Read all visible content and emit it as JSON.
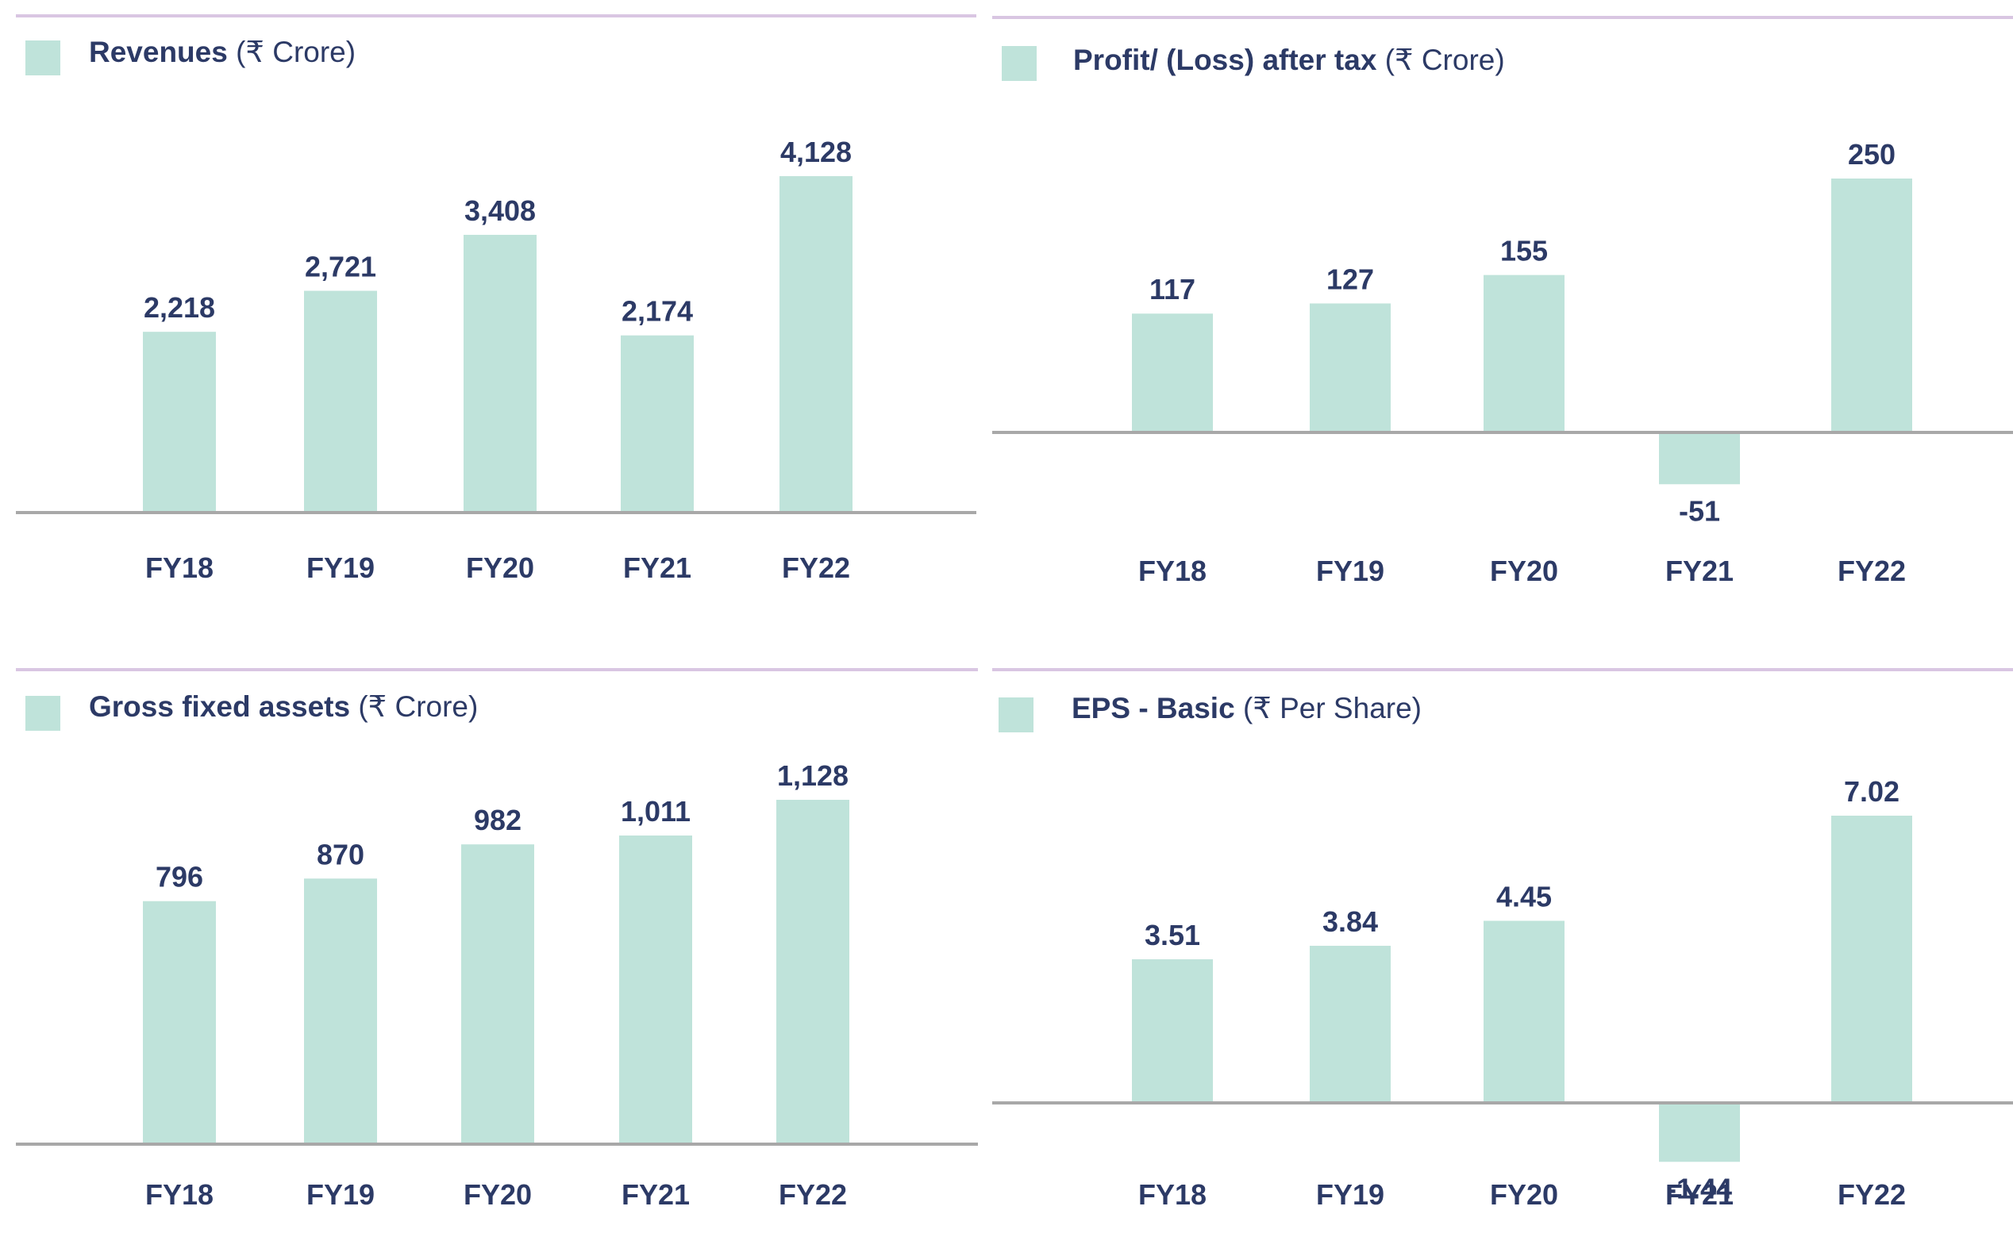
{
  "colors": {
    "bar": "#bfe3da",
    "axis": "#a8a8a8",
    "topline": "#d9c6e2",
    "text": "#2c3a66"
  },
  "charts": [
    {
      "key": "revenues",
      "title_bold": "Revenues",
      "title_unit": "(₹ Crore)"
    },
    {
      "key": "pat",
      "title_bold": "Profit/ (Loss) after tax",
      "title_unit": "(₹ Crore)"
    },
    {
      "key": "gfa",
      "title_bold": "Gross fixed assets",
      "title_unit": "(₹ Crore)"
    },
    {
      "key": "eps",
      "title_bold": "EPS - Basic",
      "title_unit": "(₹ Per Share)"
    }
  ],
  "chart_data": [
    {
      "type": "bar",
      "title": "Revenues (₹ Crore)",
      "categories": [
        "FY18",
        "FY19",
        "FY20",
        "FY21",
        "FY22"
      ],
      "values": [
        2218,
        2721,
        3408,
        2174,
        4128
      ],
      "value_labels": [
        "2,218",
        "2,721",
        "3,408",
        "2,174",
        "4,128"
      ],
      "xlabel": "",
      "ylabel": "",
      "ylim": [
        0,
        4128
      ],
      "grid": false
    },
    {
      "type": "bar",
      "title": "Profit/ (Loss) after tax (₹ Crore)",
      "categories": [
        "FY18",
        "FY19",
        "FY20",
        "FY21",
        "FY22"
      ],
      "values": [
        117,
        127,
        155,
        -51,
        250
      ],
      "value_labels": [
        "117",
        "127",
        "155",
        "-51",
        "250"
      ],
      "xlabel": "",
      "ylabel": "",
      "ylim": [
        -51,
        250
      ],
      "grid": false
    },
    {
      "type": "bar",
      "title": "Gross fixed assets (₹ Crore)",
      "categories": [
        "FY18",
        "FY19",
        "FY20",
        "FY21",
        "FY22"
      ],
      "values": [
        796,
        870,
        982,
        1011,
        1128
      ],
      "value_labels": [
        "796",
        "870",
        "982",
        "1,011",
        "1,128"
      ],
      "xlabel": "",
      "ylabel": "",
      "ylim": [
        0,
        1128
      ],
      "grid": false
    },
    {
      "type": "bar",
      "title": "EPS - Basic (₹ Per Share)",
      "categories": [
        "FY18",
        "FY19",
        "FY20",
        "FY21",
        "FY22"
      ],
      "values": [
        3.51,
        3.84,
        4.45,
        -1.44,
        7.02
      ],
      "value_labels": [
        "3.51",
        "3.84",
        "4.45",
        "-1.44",
        "7.02"
      ],
      "xlabel": "",
      "ylabel": "",
      "ylim": [
        -1.44,
        7.02
      ],
      "grid": false
    }
  ]
}
